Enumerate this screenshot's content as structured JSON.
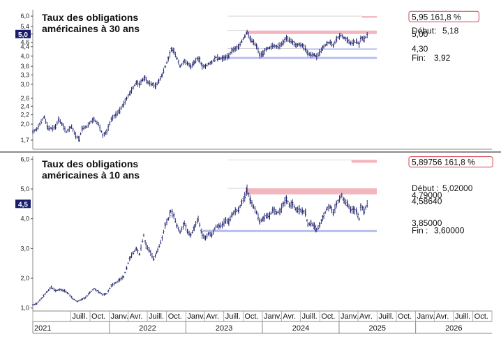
{
  "chart_data": [
    {
      "type": "bar",
      "style": "ohlc",
      "title": "Taux des obligations américaines à 30 ans",
      "title_lines": [
        "Taux des obligations",
        "américaines à 30 ans"
      ],
      "y_scale": "log",
      "ylim": [
        1.55,
        6.4
      ],
      "y_ticks": [
        {
          "value": 6.0,
          "label": "6,0"
        },
        {
          "value": 5.4,
          "label": "5,4"
        },
        {
          "value": 5.0,
          "label": "5,0"
        },
        {
          "value": 4.6,
          "label": "4,6"
        },
        {
          "value": 4.4,
          "label": "4,4"
        },
        {
          "value": 4.0,
          "label": "4,0"
        },
        {
          "value": 3.6,
          "label": "3,6"
        },
        {
          "value": 3.3,
          "label": "3,3"
        },
        {
          "value": 3.0,
          "label": "3,0"
        },
        {
          "value": 2.6,
          "label": "2,6"
        },
        {
          "value": 2.4,
          "label": "2,4"
        },
        {
          "value": 2.2,
          "label": "2,2"
        },
        {
          "value": 2.0,
          "label": "2,0"
        },
        {
          "value": 1.7,
          "label": "1,7"
        }
      ],
      "current_value": 5.0,
      "current_label": "5,0",
      "series_points": [
        [
          "2021-01-01",
          1.85
        ],
        [
          "2021-01-20",
          1.9
        ],
        [
          "2021-02-10",
          2.05
        ],
        [
          "2021-02-25",
          2.15
        ],
        [
          "2021-03-15",
          1.92
        ],
        [
          "2021-04-05",
          1.92
        ],
        [
          "2021-04-20",
          1.95
        ],
        [
          "2021-05-05",
          2.1
        ],
        [
          "2021-05-20",
          2.0
        ],
        [
          "2021-06-10",
          1.85
        ],
        [
          "2021-07-05",
          1.95
        ],
        [
          "2021-07-25",
          1.78
        ],
        [
          "2021-08-10",
          1.72
        ],
        [
          "2021-08-25",
          1.92
        ],
        [
          "2021-09-15",
          1.95
        ],
        [
          "2021-10-05",
          2.05
        ],
        [
          "2021-10-20",
          2.1
        ],
        [
          "2021-11-10",
          2.0
        ],
        [
          "2021-12-01",
          1.78
        ],
        [
          "2021-12-20",
          1.85
        ],
        [
          "2022-01-10",
          2.1
        ],
        [
          "2022-02-01",
          2.2
        ],
        [
          "2022-02-20",
          2.3
        ],
        [
          "2022-03-10",
          2.45
        ],
        [
          "2022-03-25",
          2.6
        ],
        [
          "2022-04-10",
          2.75
        ],
        [
          "2022-04-25",
          2.9
        ],
        [
          "2022-05-10",
          3.05
        ],
        [
          "2022-05-25",
          3.0
        ],
        [
          "2022-06-10",
          3.15
        ],
        [
          "2022-06-20",
          3.2
        ],
        [
          "2022-07-05",
          3.05
        ],
        [
          "2022-07-25",
          3.0
        ],
        [
          "2022-08-10",
          2.95
        ],
        [
          "2022-08-25",
          3.1
        ],
        [
          "2022-09-10",
          3.3
        ],
        [
          "2022-09-25",
          3.6
        ],
        [
          "2022-10-10",
          3.9
        ],
        [
          "2022-10-25",
          4.3
        ],
        [
          "2022-11-05",
          4.2
        ],
        [
          "2022-11-20",
          3.9
        ],
        [
          "2022-12-05",
          3.6
        ],
        [
          "2022-12-25",
          3.8
        ],
        [
          "2023-01-10",
          3.7
        ],
        [
          "2023-01-25",
          3.6
        ],
        [
          "2023-02-10",
          3.75
        ],
        [
          "2023-02-25",
          3.9
        ],
        [
          "2023-03-08",
          3.85
        ],
        [
          "2023-03-20",
          3.6
        ],
        [
          "2023-04-05",
          3.6
        ],
        [
          "2023-04-20",
          3.7
        ],
        [
          "2023-05-05",
          3.75
        ],
        [
          "2023-05-25",
          3.95
        ],
        [
          "2023-06-10",
          3.9
        ],
        [
          "2023-06-25",
          3.9
        ],
        [
          "2023-07-10",
          3.95
        ],
        [
          "2023-07-25",
          4.0
        ],
        [
          "2023-08-10",
          4.25
        ],
        [
          "2023-08-25",
          4.3
        ],
        [
          "2023-09-10",
          4.4
        ],
        [
          "2023-09-25",
          4.65
        ],
        [
          "2023-10-10",
          4.9
        ],
        [
          "2023-10-20",
          5.1
        ],
        [
          "2023-11-05",
          4.75
        ],
        [
          "2023-11-20",
          4.6
        ],
        [
          "2023-12-05",
          4.4
        ],
        [
          "2023-12-20",
          4.05
        ],
        [
          "2024-01-05",
          4.1
        ],
        [
          "2024-01-20",
          4.3
        ],
        [
          "2024-02-05",
          4.35
        ],
        [
          "2024-02-20",
          4.45
        ],
        [
          "2024-03-10",
          4.4
        ],
        [
          "2024-03-25",
          4.45
        ],
        [
          "2024-04-10",
          4.6
        ],
        [
          "2024-04-25",
          4.8
        ],
        [
          "2024-05-10",
          4.7
        ],
        [
          "2024-05-25",
          4.6
        ],
        [
          "2024-06-10",
          4.45
        ],
        [
          "2024-06-25",
          4.5
        ],
        [
          "2024-07-10",
          4.45
        ],
        [
          "2024-07-25",
          4.3
        ],
        [
          "2024-08-05",
          4.1
        ],
        [
          "2024-08-20",
          4.05
        ],
        [
          "2024-09-05",
          4.05
        ],
        [
          "2024-09-16",
          3.97
        ],
        [
          "2024-10-01",
          4.15
        ],
        [
          "2024-10-20",
          4.4
        ],
        [
          "2024-11-05",
          4.55
        ],
        [
          "2024-11-20",
          4.6
        ],
        [
          "2024-12-05",
          4.45
        ],
        [
          "2024-12-20",
          4.75
        ],
        [
          "2025-01-10",
          4.95
        ],
        [
          "2025-01-25",
          4.8
        ],
        [
          "2025-02-10",
          4.7
        ],
        [
          "2025-02-25",
          4.55
        ],
        [
          "2025-03-10",
          4.6
        ],
        [
          "2025-03-25",
          4.65
        ],
        [
          "2025-04-07",
          4.5
        ],
        [
          "2025-04-15",
          4.8
        ],
        [
          "2025-05-01",
          4.75
        ],
        [
          "2025-05-15",
          4.95
        ],
        [
          "2025-05-22",
          5.05
        ]
      ],
      "annotations": [
        {
          "kind": "band",
          "color": "#f4b6be",
          "x0": "2023-10-15",
          "x1": "2025-06-30",
          "y0": 5.0,
          "y1": 5.18
        },
        {
          "kind": "band",
          "color": "#b9bdf0",
          "x0": "2023-06-15",
          "x1": "2025-06-30",
          "y0": 3.88,
          "y1": 3.96
        },
        {
          "kind": "band",
          "color": "#f4b6be",
          "x0": "2025-04-20",
          "x1": "2025-06-30",
          "y0": 5.9,
          "y1": 6.0
        },
        {
          "kind": "band",
          "color": "#b9bdf0",
          "x0": "2024-07-15",
          "x1": "2025-06-30",
          "y0": 4.28,
          "y1": 4.32
        }
      ],
      "labels": [
        {
          "text": "5,95   161,8 %",
          "boxed": true,
          "value": 5.95
        },
        {
          "text": "Début:",
          "value": 5.18,
          "right": "5,18"
        },
        {
          "text": "5,00",
          "value": 5.0
        },
        {
          "text": "4,30",
          "value": 4.3
        },
        {
          "text": "Fin:",
          "value": 3.92,
          "right": "3,92"
        }
      ]
    },
    {
      "type": "bar",
      "style": "ohlc",
      "title": "Taux des obligations américaines à 10 ans",
      "title_lines": [
        "Taux des obligations",
        "américaines à 10 ans"
      ],
      "y_scale": "linear",
      "ylim": [
        0.9,
        6.1
      ],
      "y_ticks": [
        {
          "value": 6.0,
          "label": "6,0"
        },
        {
          "value": 5.0,
          "label": "5,0"
        },
        {
          "value": 4.0,
          "label": "4,0"
        },
        {
          "value": 3.0,
          "label": "3,0"
        },
        {
          "value": 2.0,
          "label": "2,0"
        },
        {
          "value": 1.0,
          "label": "1,0"
        }
      ],
      "current_value": 4.5,
      "current_label": "4,5",
      "series_points": [
        [
          "2021-01-01",
          1.1
        ],
        [
          "2021-01-20",
          1.15
        ],
        [
          "2021-02-15",
          1.35
        ],
        [
          "2021-03-10",
          1.55
        ],
        [
          "2021-03-30",
          1.7
        ],
        [
          "2021-04-20",
          1.58
        ],
        [
          "2021-05-10",
          1.62
        ],
        [
          "2021-06-01",
          1.58
        ],
        [
          "2021-06-20",
          1.48
        ],
        [
          "2021-07-10",
          1.32
        ],
        [
          "2021-08-01",
          1.22
        ],
        [
          "2021-08-20",
          1.28
        ],
        [
          "2021-09-10",
          1.35
        ],
        [
          "2021-09-30",
          1.52
        ],
        [
          "2021-10-20",
          1.65
        ],
        [
          "2021-11-10",
          1.55
        ],
        [
          "2021-12-01",
          1.45
        ],
        [
          "2021-12-20",
          1.48
        ],
        [
          "2022-01-10",
          1.75
        ],
        [
          "2022-02-01",
          1.85
        ],
        [
          "2022-02-20",
          1.95
        ],
        [
          "2022-03-10",
          2.05
        ],
        [
          "2022-03-25",
          2.35
        ],
        [
          "2022-04-10",
          2.7
        ],
        [
          "2022-04-25",
          2.85
        ],
        [
          "2022-05-10",
          3.0
        ],
        [
          "2022-05-25",
          2.8
        ],
        [
          "2022-06-14",
          3.45
        ],
        [
          "2022-06-25",
          3.1
        ],
        [
          "2022-07-10",
          2.95
        ],
        [
          "2022-08-01",
          2.65
        ],
        [
          "2022-08-20",
          2.95
        ],
        [
          "2022-09-10",
          3.35
        ],
        [
          "2022-09-25",
          3.8
        ],
        [
          "2022-10-10",
          4.0
        ],
        [
          "2022-10-21",
          4.25
        ],
        [
          "2022-11-05",
          4.1
        ],
        [
          "2022-11-20",
          3.75
        ],
        [
          "2022-12-05",
          3.55
        ],
        [
          "2022-12-25",
          3.85
        ],
        [
          "2023-01-10",
          3.55
        ],
        [
          "2023-01-25",
          3.45
        ],
        [
          "2023-02-10",
          3.7
        ],
        [
          "2023-03-01",
          4.0
        ],
        [
          "2023-03-20",
          3.45
        ],
        [
          "2023-04-05",
          3.35
        ],
        [
          "2023-04-20",
          3.5
        ],
        [
          "2023-05-05",
          3.45
        ],
        [
          "2023-05-25",
          3.75
        ],
        [
          "2023-06-10",
          3.75
        ],
        [
          "2023-06-25",
          3.8
        ],
        [
          "2023-07-10",
          3.95
        ],
        [
          "2023-07-25",
          3.9
        ],
        [
          "2023-08-10",
          4.15
        ],
        [
          "2023-08-25",
          4.25
        ],
        [
          "2023-09-10",
          4.3
        ],
        [
          "2023-09-25",
          4.55
        ],
        [
          "2023-10-10",
          4.75
        ],
        [
          "2023-10-20",
          4.98
        ],
        [
          "2023-11-05",
          4.6
        ],
        [
          "2023-11-20",
          4.4
        ],
        [
          "2023-12-05",
          4.2
        ],
        [
          "2023-12-20",
          3.9
        ],
        [
          "2024-01-05",
          4.0
        ],
        [
          "2024-01-20",
          4.1
        ],
        [
          "2024-02-05",
          4.1
        ],
        [
          "2024-02-20",
          4.3
        ],
        [
          "2024-03-10",
          4.2
        ],
        [
          "2024-03-25",
          4.25
        ],
        [
          "2024-04-10",
          4.5
        ],
        [
          "2024-04-25",
          4.65
        ],
        [
          "2024-05-10",
          4.45
        ],
        [
          "2024-05-25",
          4.5
        ],
        [
          "2024-06-10",
          4.3
        ],
        [
          "2024-06-25",
          4.3
        ],
        [
          "2024-07-10",
          4.25
        ],
        [
          "2024-07-25",
          4.2
        ],
        [
          "2024-08-05",
          3.8
        ],
        [
          "2024-08-20",
          3.85
        ],
        [
          "2024-09-05",
          3.75
        ],
        [
          "2024-09-16",
          3.62
        ],
        [
          "2024-10-01",
          3.8
        ],
        [
          "2024-10-20",
          4.1
        ],
        [
          "2024-11-05",
          4.35
        ],
        [
          "2024-11-20",
          4.4
        ],
        [
          "2024-12-05",
          4.2
        ],
        [
          "2024-12-20",
          4.5
        ],
        [
          "2025-01-14",
          4.79
        ],
        [
          "2025-01-25",
          4.6
        ],
        [
          "2025-02-10",
          4.5
        ],
        [
          "2025-02-25",
          4.3
        ],
        [
          "2025-03-10",
          4.3
        ],
        [
          "2025-03-25",
          4.25
        ],
        [
          "2025-04-07",
          3.98
        ],
        [
          "2025-04-15",
          4.45
        ],
        [
          "2025-05-01",
          4.25
        ],
        [
          "2025-05-15",
          4.5
        ],
        [
          "2025-05-22",
          4.55
        ]
      ],
      "annotations": [
        {
          "kind": "band",
          "color": "#f4b6be",
          "x0": "2023-10-15",
          "x1": "2025-06-30",
          "y0": 4.82,
          "y1": 5.02
        },
        {
          "kind": "band",
          "color": "#b9bdf0",
          "x0": "2023-03-20",
          "x1": "2025-06-30",
          "y0": 3.55,
          "y1": 3.62
        },
        {
          "kind": "band",
          "color": "#f4b6be",
          "x0": "2025-03-01",
          "x1": "2025-06-30",
          "y0": 5.88,
          "y1": 5.98
        }
      ],
      "labels": [
        {
          "text": "5,89756   161,8 %",
          "boxed": true,
          "value": 5.89756
        },
        {
          "text": "Début :",
          "value": 5.02,
          "right": "5,02000"
        },
        {
          "text": "4,79000",
          "value": 4.79
        },
        {
          "text": "4,58640",
          "value": 4.5864
        },
        {
          "text": "3,85000",
          "value": 3.85
        },
        {
          "text": "Fin :",
          "value": 3.6,
          "right": "3,60000"
        }
      ]
    }
  ],
  "x_axis": {
    "start": "2021-01-01",
    "end": "2026-12-31",
    "month_labels": [
      "Juill.",
      "Oct.",
      "Janv.",
      "Avr.",
      "Juill.",
      "Oct.",
      "Janv.",
      "Avr.",
      "Juill.",
      "Oct.",
      "Janv.",
      "Avr.",
      "Juill.",
      "Oct.",
      "Janv.",
      "Avr.",
      "Juill.",
      "Oct.",
      "Janv.",
      "Avr.",
      "Juill.",
      "Oct."
    ],
    "month_dates": [
      "2021-07-01",
      "2021-10-01",
      "2022-01-01",
      "2022-04-01",
      "2022-07-01",
      "2022-10-01",
      "2023-01-01",
      "2023-04-01",
      "2023-07-01",
      "2023-10-01",
      "2024-01-01",
      "2024-04-01",
      "2024-07-01",
      "2024-10-01",
      "2025-01-01",
      "2025-04-01",
      "2025-07-01",
      "2025-10-01",
      "2026-01-01",
      "2026-04-01",
      "2026-07-01",
      "2026-10-01"
    ],
    "years": [
      {
        "label": "2021",
        "date": "2021-01-01"
      },
      {
        "label": "2022",
        "date": "2022-01-01"
      },
      {
        "label": "2023",
        "date": "2023-01-01"
      },
      {
        "label": "2024",
        "date": "2024-01-01"
      },
      {
        "label": "2025",
        "date": "2025-01-01"
      },
      {
        "label": "2026",
        "date": "2026-01-01"
      }
    ]
  },
  "colors": {
    "bars": "#1a1d6b",
    "band_red": "#f4b6be",
    "band_blue": "#b9bdf0",
    "current_value_box": "#1a1d6b",
    "boxed_label_border": "#d9434e",
    "panel_border": "#888888"
  }
}
